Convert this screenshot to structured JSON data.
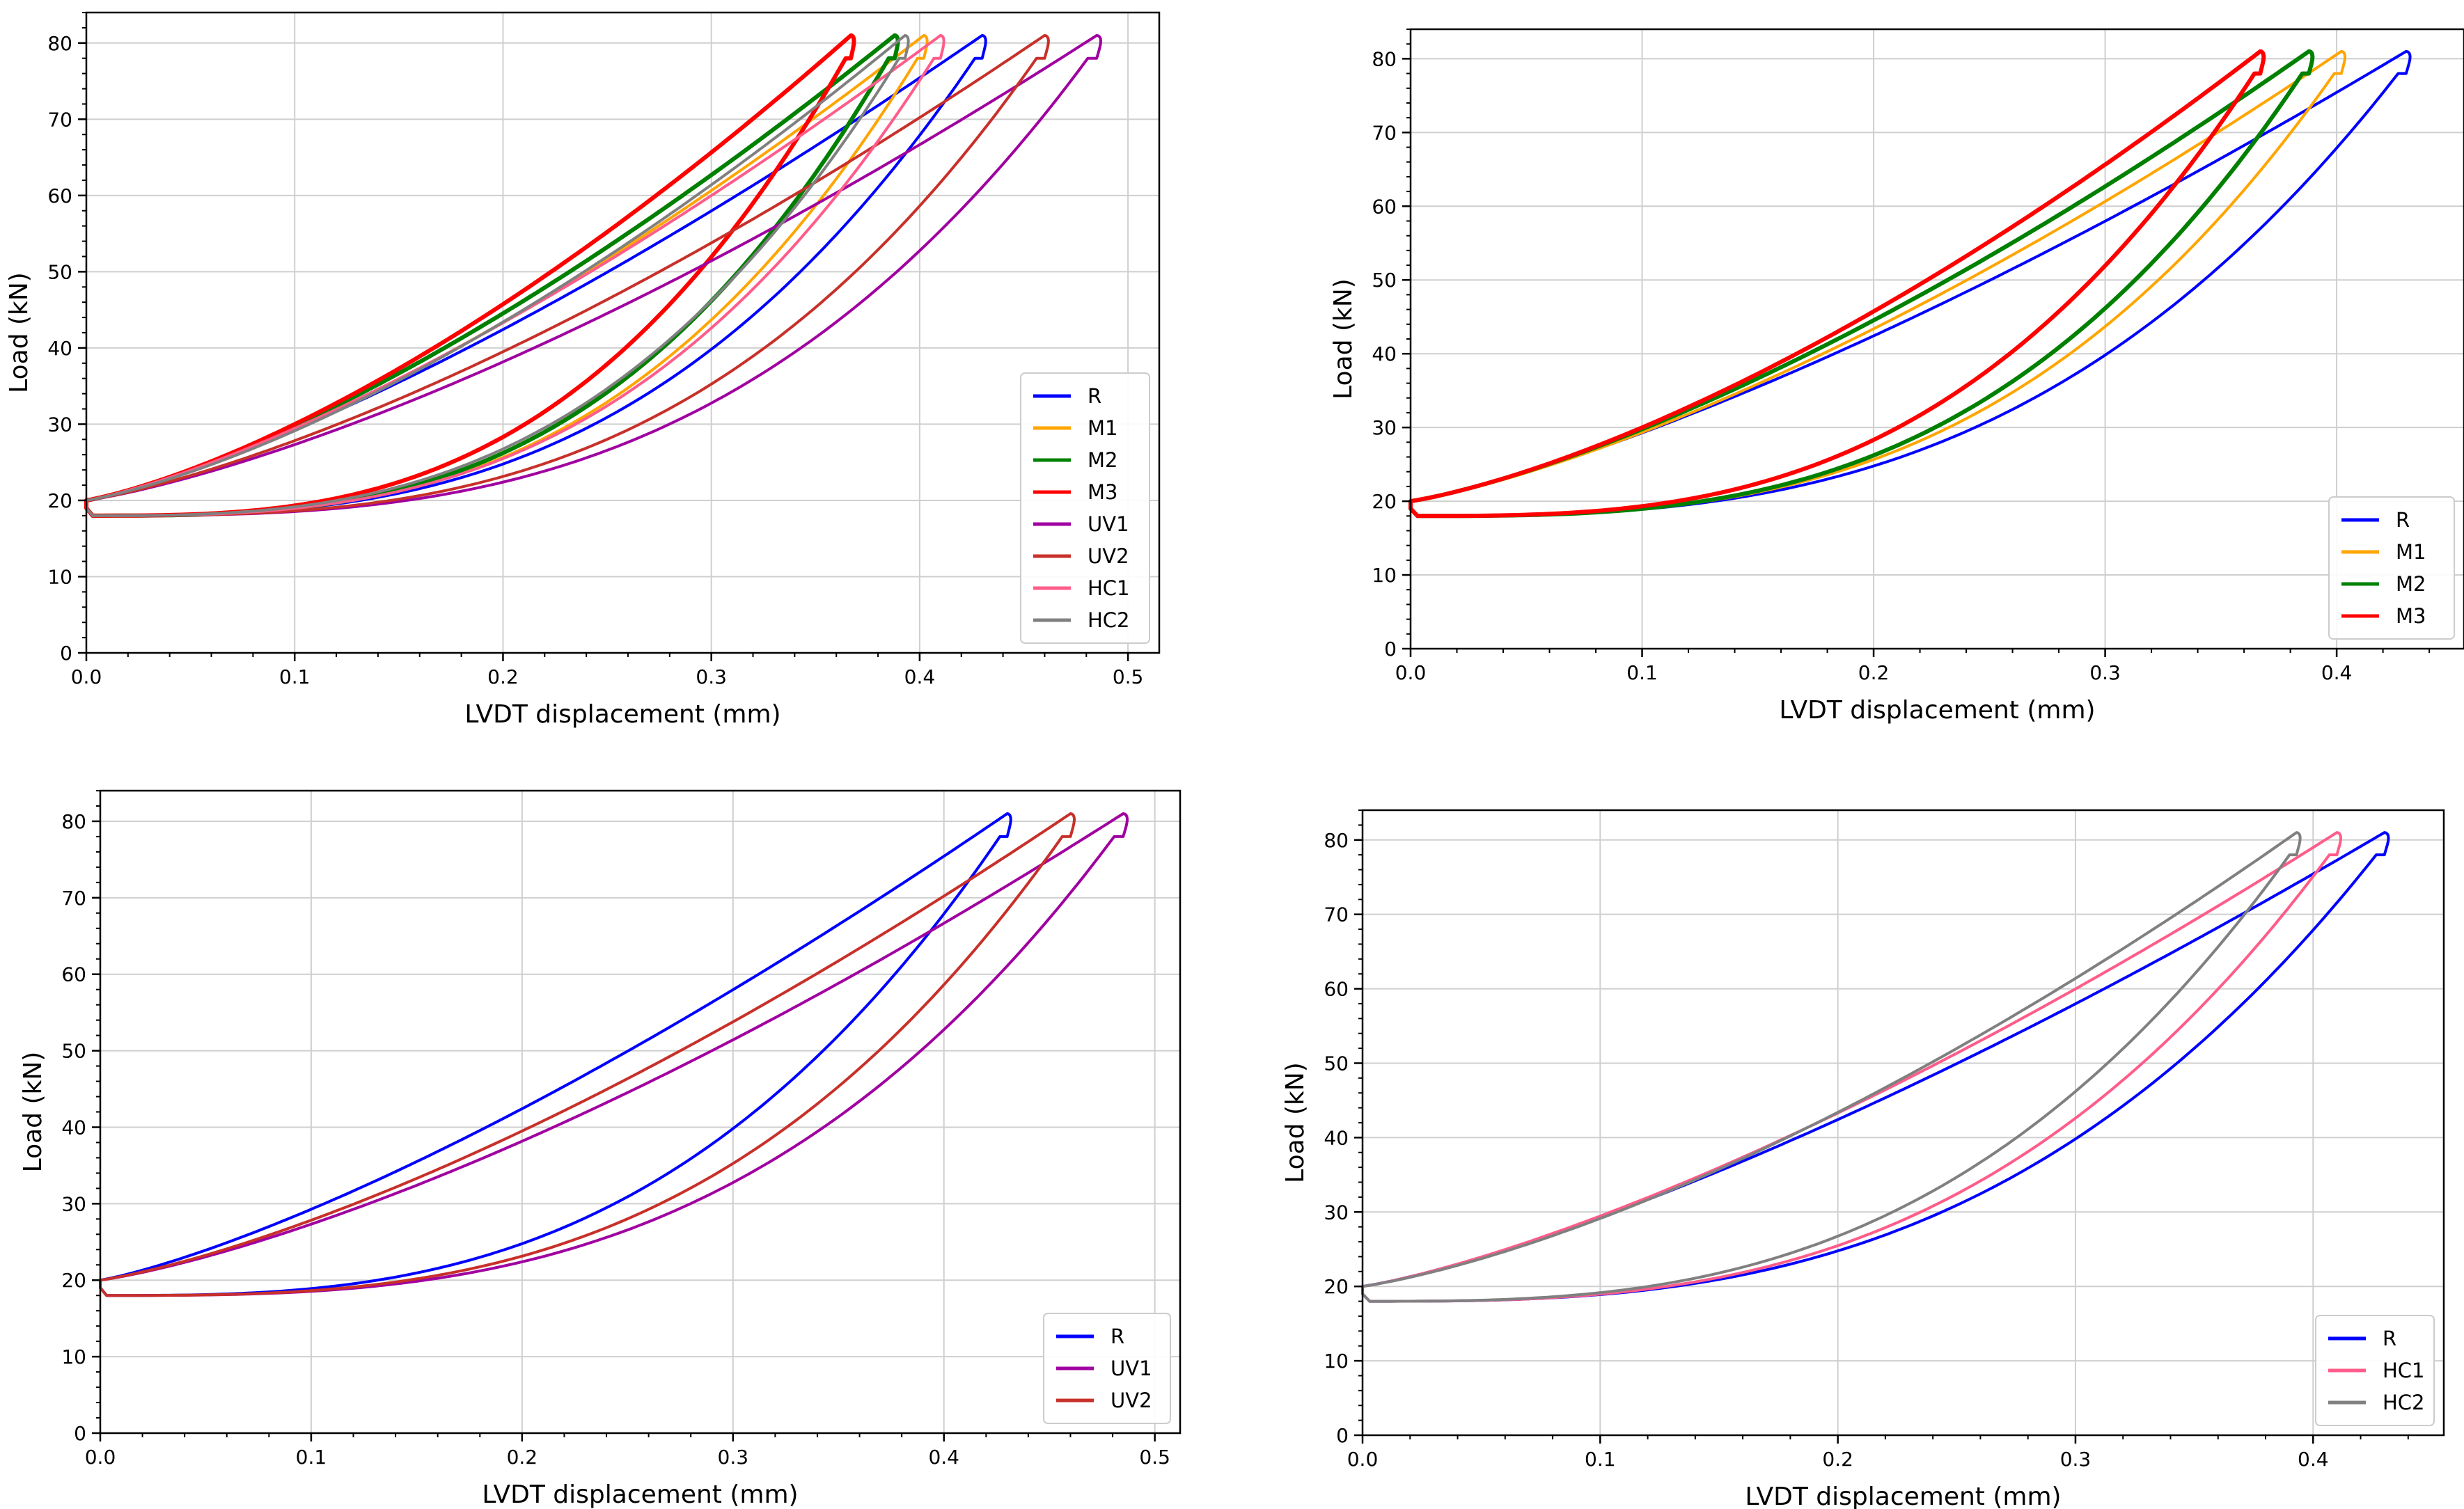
{
  "series_colors": {
    "R": "#0000ff",
    "M1": "#ffa500",
    "M2": "#008000",
    "M3": "#ff0000",
    "UV1": "#a000a0",
    "UV2": "#c8302a",
    "HC1": "#ff5c8a",
    "HC2": "#808080"
  },
  "hysteresis_loops": {
    "R": {
      "x_peak": 0.43,
      "y_peak": 81,
      "curvature_load": 0.45,
      "curvature_unload": 1.85
    },
    "M1": {
      "x_peak": 0.402,
      "y_peak": 81,
      "curvature_load": 0.55,
      "curvature_unload": 1.95
    },
    "M2": {
      "x_peak": 0.388,
      "y_peak": 81,
      "curvature_load": 0.55,
      "curvature_unload": 2.0
    },
    "M3": {
      "x_peak": 0.367,
      "y_peak": 81,
      "curvature_load": 0.62,
      "curvature_unload": 1.9
    },
    "UV1": {
      "x_peak": 0.485,
      "y_peak": 81,
      "curvature_load": 0.55,
      "curvature_unload": 1.95
    },
    "UV2": {
      "x_peak": 0.46,
      "y_peak": 81,
      "curvature_load": 0.55,
      "curvature_unload": 1.95
    },
    "HC1": {
      "x_peak": 0.41,
      "y_peak": 81,
      "curvature_load": 0.5,
      "curvature_unload": 1.9
    },
    "HC2": {
      "x_peak": 0.393,
      "y_peak": 81,
      "curvature_load": 0.62,
      "curvature_unload": 1.85
    }
  },
  "loop_start": {
    "load_start": 20,
    "load_min": 18
  },
  "chart_data": [
    {
      "type": "line",
      "xlabel": "LVDT displacement (mm)",
      "ylabel": "Load (kN)",
      "xlim": [
        0.0,
        0.515
      ],
      "ylim": [
        0,
        84
      ],
      "xticks": [
        0.0,
        0.1,
        0.2,
        0.3,
        0.4,
        0.5
      ],
      "xtick_labels": [
        "0.0",
        "0.1",
        "0.2",
        "0.3",
        "0.4",
        "0.5"
      ],
      "yticks": [
        0,
        10,
        20,
        30,
        40,
        50,
        60,
        70,
        80
      ],
      "ytick_labels": [
        "0",
        "10",
        "20",
        "30",
        "40",
        "50",
        "60",
        "70",
        "80"
      ],
      "grid": true,
      "legend_position": "bottom-right",
      "series": [
        "R",
        "M1",
        "M2",
        "M3",
        "UV1",
        "UV2",
        "HC1",
        "HC2"
      ]
    },
    {
      "type": "line",
      "xlabel": "LVDT displacement (mm)",
      "ylabel": "Load (kN)",
      "xlim": [
        0.0,
        0.455
      ],
      "ylim": [
        0,
        84
      ],
      "xticks": [
        0.0,
        0.1,
        0.2,
        0.3,
        0.4
      ],
      "xtick_labels": [
        "0.0",
        "0.1",
        "0.2",
        "0.3",
        "0.4"
      ],
      "yticks": [
        0,
        10,
        20,
        30,
        40,
        50,
        60,
        70,
        80
      ],
      "ytick_labels": [
        "0",
        "10",
        "20",
        "30",
        "40",
        "50",
        "60",
        "70",
        "80"
      ],
      "grid": true,
      "legend_position": "bottom-right",
      "series": [
        "R",
        "M1",
        "M2",
        "M3"
      ]
    },
    {
      "type": "line",
      "xlabel": "LVDT displacement (mm)",
      "ylabel": "Load (kN)",
      "xlim": [
        0.0,
        0.512
      ],
      "ylim": [
        0,
        84
      ],
      "xticks": [
        0.0,
        0.1,
        0.2,
        0.3,
        0.4,
        0.5
      ],
      "xtick_labels": [
        "0.0",
        "0.1",
        "0.2",
        "0.3",
        "0.4",
        "0.5"
      ],
      "yticks": [
        0,
        10,
        20,
        30,
        40,
        50,
        60,
        70,
        80
      ],
      "ytick_labels": [
        "0",
        "10",
        "20",
        "30",
        "40",
        "50",
        "60",
        "70",
        "80"
      ],
      "grid": true,
      "legend_position": "bottom-right",
      "series": [
        "R",
        "UV1",
        "UV2"
      ]
    },
    {
      "type": "line",
      "xlabel": "LVDT displacement (mm)",
      "ylabel": "Load (kN)",
      "xlim": [
        0.0,
        0.455
      ],
      "ylim": [
        0,
        84
      ],
      "xticks": [
        0.0,
        0.1,
        0.2,
        0.3,
        0.4
      ],
      "xtick_labels": [
        "0.0",
        "0.1",
        "0.2",
        "0.3",
        "0.4"
      ],
      "yticks": [
        0,
        10,
        20,
        30,
        40,
        50,
        60,
        70,
        80
      ],
      "ytick_labels": [
        "0",
        "10",
        "20",
        "30",
        "40",
        "50",
        "60",
        "70",
        "80"
      ],
      "grid": true,
      "legend_position": "bottom-right",
      "series": [
        "R",
        "HC1",
        "HC2"
      ]
    }
  ]
}
